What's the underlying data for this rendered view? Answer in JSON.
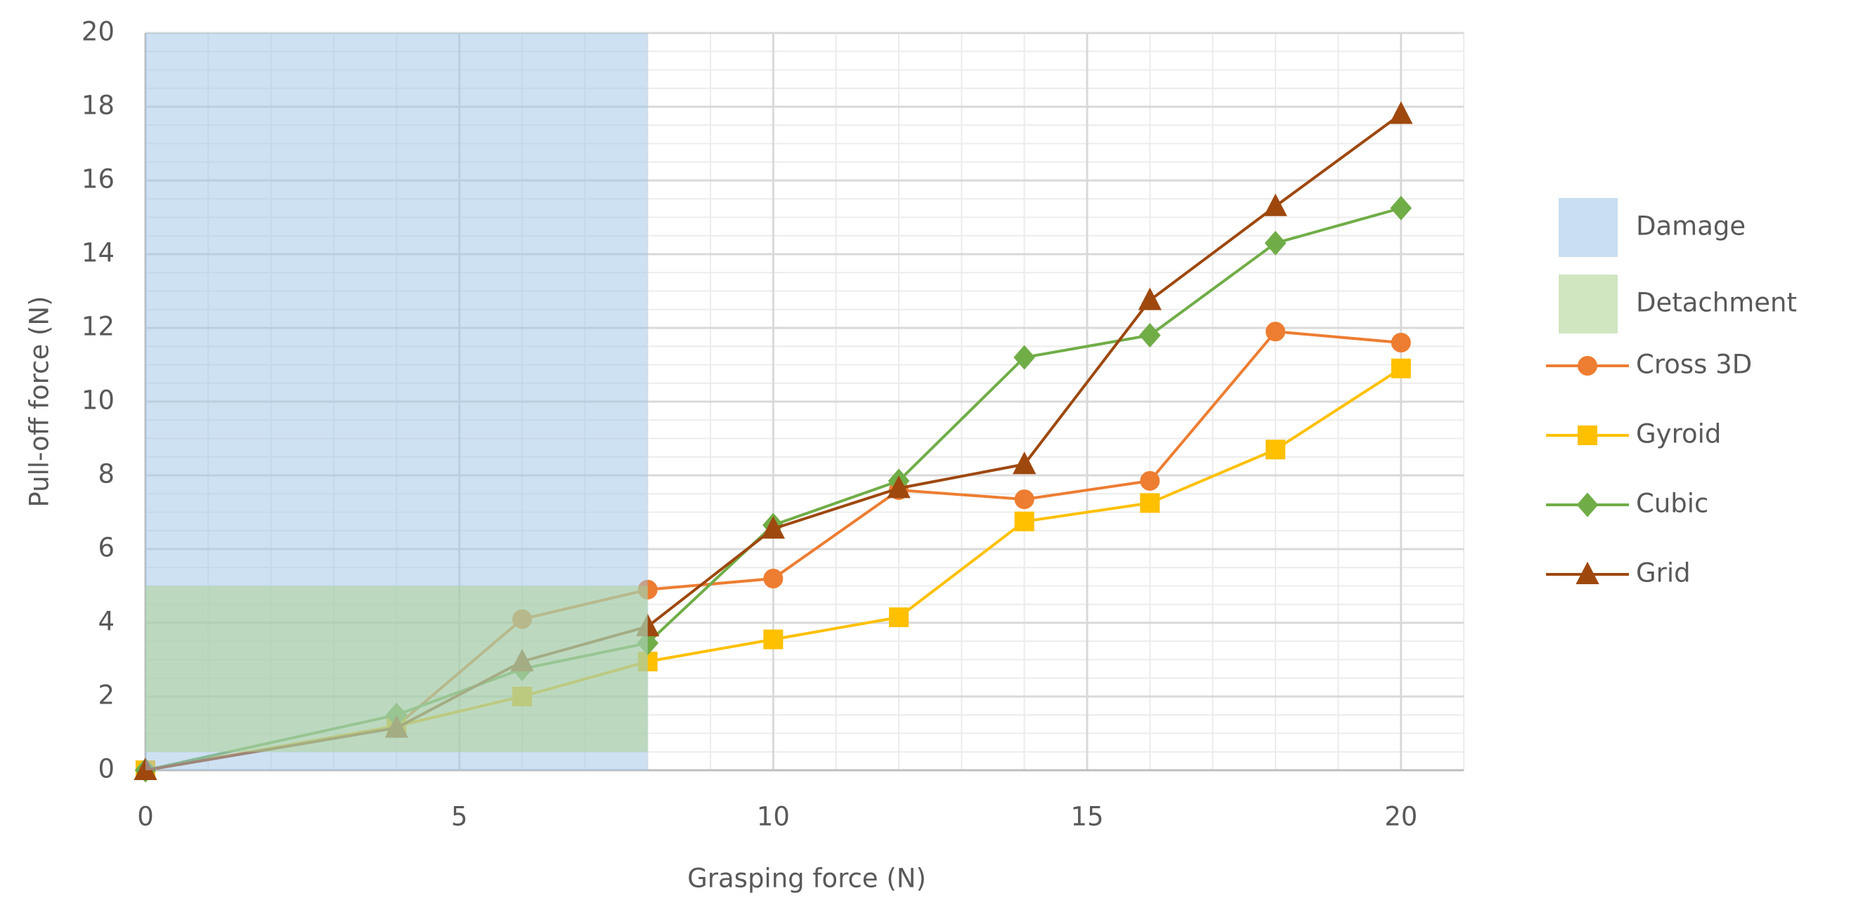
{
  "chart_data": {
    "type": "line",
    "x_label": "Grasping force (N)",
    "y_label": "Pull-off force (N)",
    "x": [
      0,
      4,
      6,
      8,
      10,
      12,
      14,
      16,
      18,
      20
    ],
    "series": [
      {
        "name": "Cross 3D",
        "color": "#ed7d31",
        "marker": "circle",
        "values": [
          0,
          1.2,
          4.1,
          4.9,
          5.2,
          7.6,
          7.35,
          7.85,
          11.9,
          11.6
        ]
      },
      {
        "name": "Gyroid",
        "color": "#ffc000",
        "marker": "square",
        "values": [
          0,
          1.2,
          2.0,
          2.95,
          3.55,
          4.15,
          6.75,
          7.25,
          8.7,
          10.9
        ]
      },
      {
        "name": "Cubic",
        "color": "#70ad47",
        "marker": "diamond",
        "values": [
          0,
          1.5,
          2.75,
          3.45,
          6.65,
          7.85,
          11.2,
          11.8,
          14.3,
          15.25
        ]
      },
      {
        "name": "Grid",
        "color": "#9e480e",
        "marker": "triangle",
        "values": [
          0,
          1.15,
          2.95,
          3.9,
          6.55,
          7.65,
          8.3,
          12.75,
          15.3,
          17.8
        ]
      }
    ],
    "regions": [
      {
        "name": "Damage",
        "color": "#9dc3e6",
        "x": [
          0,
          8
        ],
        "y": [
          0,
          20
        ]
      },
      {
        "name": "Detachment",
        "color": "#a9d18e",
        "x": [
          0,
          8
        ],
        "y": [
          0.5,
          5
        ]
      }
    ],
    "xlim": [
      0,
      21
    ],
    "xticks": [
      0,
      5,
      10,
      15,
      20
    ],
    "ylim": [
      0,
      20
    ],
    "yticks": [
      0,
      2,
      4,
      6,
      8,
      10,
      12,
      14,
      16,
      18,
      20
    ],
    "grid": true,
    "x_minor_step": 1,
    "y_minor_step": 0.5,
    "legend": "right"
  }
}
